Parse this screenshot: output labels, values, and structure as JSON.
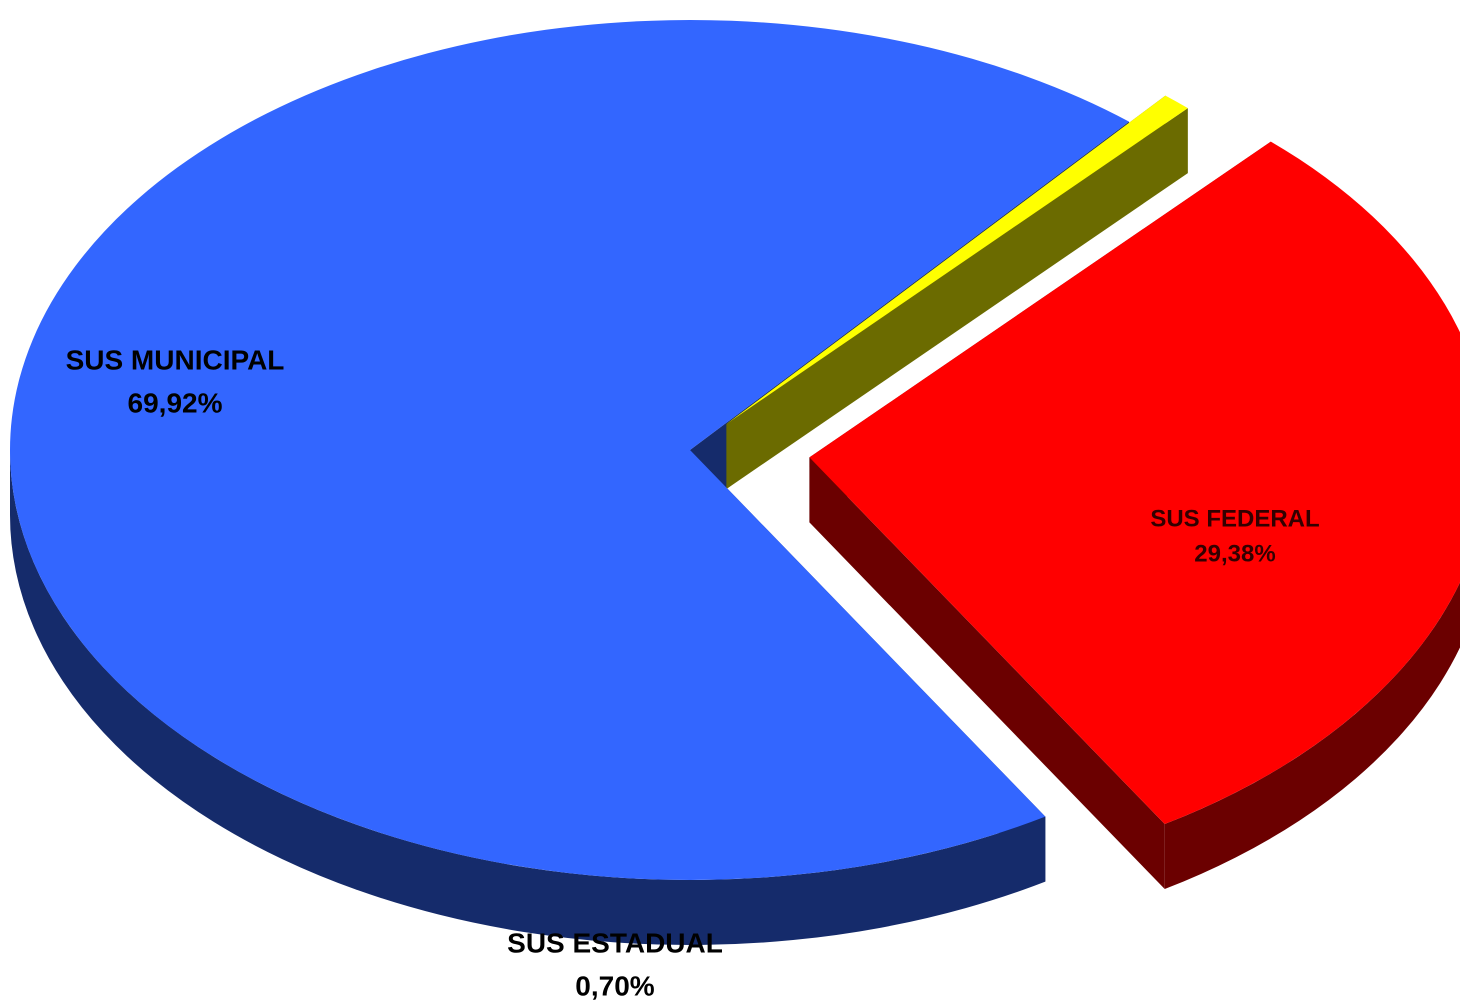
{
  "chart_data": {
    "type": "pie",
    "categories": [
      "SUS MUNICIPAL",
      "SUS ESTADUAL",
      "SUS FEDERAL"
    ],
    "values": [
      69.92,
      0.7,
      29.38
    ],
    "value_labels": [
      "69,92%",
      "0,70%",
      "29,38%"
    ],
    "colors": [
      "#3366ff",
      "#ffff00",
      "#ff0000"
    ]
  }
}
